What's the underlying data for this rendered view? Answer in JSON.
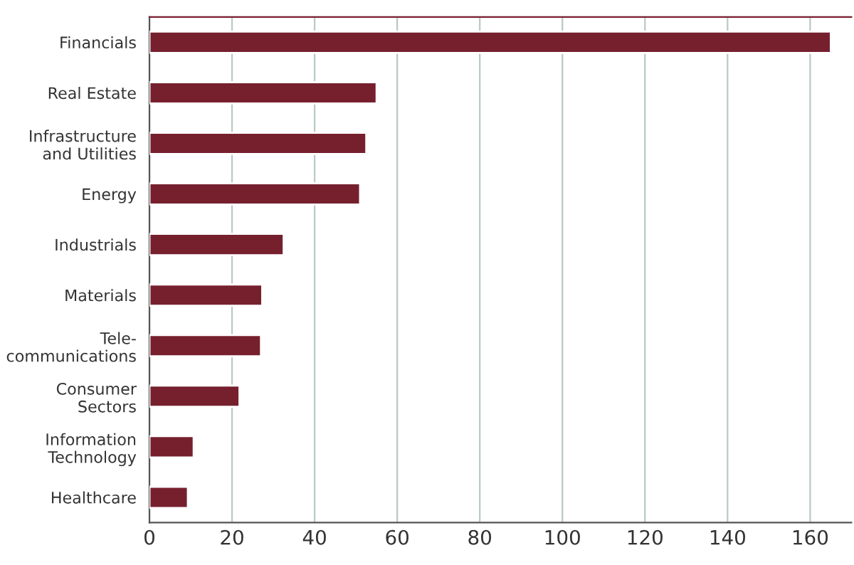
{
  "chart_data": {
    "type": "bar",
    "orientation": "horizontal",
    "categories": [
      "Financials",
      "Real Estate",
      "Infrastructure\nand Utilities",
      "Energy",
      "Industrials",
      "Materials",
      "Tele-\ncommunications",
      "Consumer\nSectors",
      "Information\nTechnology",
      "Healthcare"
    ],
    "values": [
      165,
      55,
      52.5,
      51,
      32.5,
      27.3,
      27,
      21.8,
      10.7,
      9.3
    ],
    "color": "#76202e",
    "xlim": [
      0,
      170
    ],
    "xticks": [
      0,
      20,
      40,
      60,
      80,
      100,
      120,
      140,
      160
    ],
    "grid": "x"
  }
}
